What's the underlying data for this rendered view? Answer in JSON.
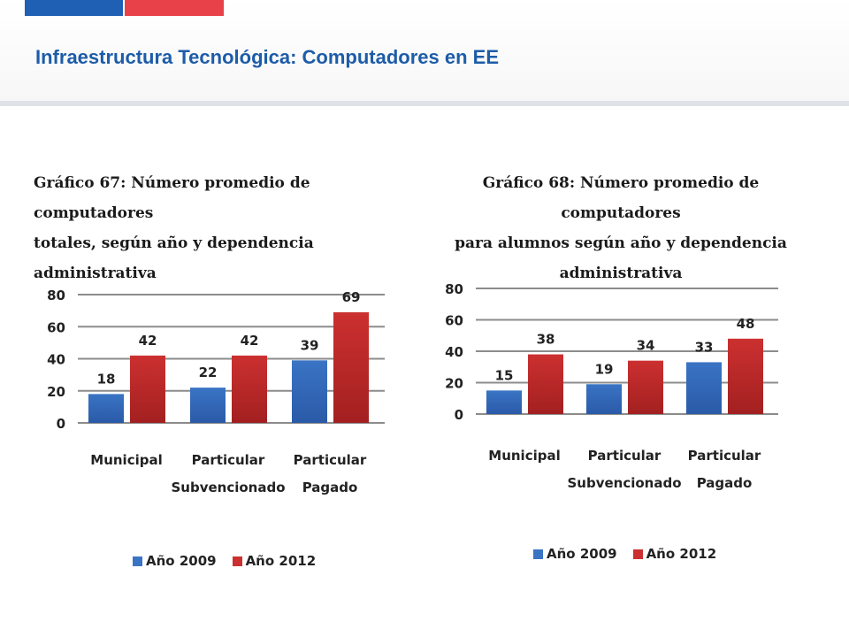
{
  "header": {
    "title": "Infraestructura Tecnológica: Computadores en EE",
    "flag_colors": [
      "#1f5fb4",
      "#e8414a"
    ]
  },
  "chart_data": [
    {
      "type": "bar",
      "title": "Gráfico 67: Número promedio de computadores totales, según año y dependencia administrativa",
      "title_lines": [
        "Gráfico 67: Número promedio de computadores",
        "totales, según año y dependencia administrativa"
      ],
      "categories": [
        [
          "Municipal"
        ],
        [
          "Particular",
          "Subvencionado"
        ],
        [
          "Particular",
          "Pagado"
        ]
      ],
      "series": [
        {
          "name": "Año 2009",
          "values": [
            18,
            22,
            39
          ],
          "color": "#3a74c4"
        },
        {
          "name": "Año 2012",
          "values": [
            42,
            42,
            69
          ],
          "color": "#cc3030"
        }
      ],
      "ylim": [
        0,
        80
      ],
      "yticks": [
        0,
        20,
        40,
        60,
        80
      ],
      "grid": true,
      "legend_position": "bottom"
    },
    {
      "type": "bar",
      "title": "Gráfico 68: Número promedio de computadores para alumnos según año y dependencia administrativa",
      "title_lines": [
        "Gráfico 68: Número promedio de computadores",
        "para alumnos según año y dependencia",
        "administrativa"
      ],
      "categories": [
        [
          "Municipal"
        ],
        [
          "Particular",
          "Subvencionado"
        ],
        [
          "Particular",
          "Pagado"
        ]
      ],
      "series": [
        {
          "name": "Año 2009",
          "values": [
            15,
            19,
            33
          ],
          "color": "#3a74c4"
        },
        {
          "name": "Año 2012",
          "values": [
            38,
            34,
            48
          ],
          "color": "#cc3030"
        }
      ],
      "ylim": [
        0,
        80
      ],
      "yticks": [
        0,
        20,
        40,
        60,
        80
      ],
      "grid": true,
      "legend_position": "bottom"
    }
  ]
}
